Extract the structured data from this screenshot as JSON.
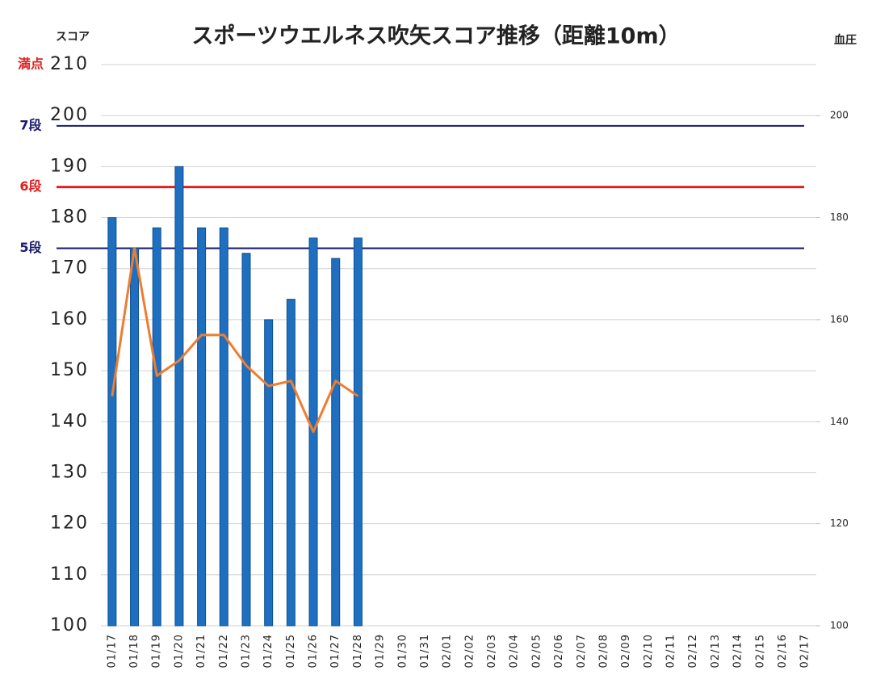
{
  "chart_data": {
    "type": "bar",
    "title": "スポーツウエルネス吹矢スコア推移（距離10m）",
    "ylabel": "スコア",
    "y2label": "血圧",
    "categories": [
      "01/17",
      "01/18",
      "01/19",
      "01/20",
      "01/21",
      "01/22",
      "01/23",
      "01/24",
      "01/25",
      "01/26",
      "01/27",
      "01/28",
      "01/29",
      "01/30",
      "01/31",
      "02/01",
      "02/02",
      "02/03",
      "02/04",
      "02/05",
      "02/06",
      "02/07",
      "02/08",
      "02/09",
      "02/10",
      "02/11",
      "02/12",
      "02/13",
      "02/14",
      "02/15",
      "02/16",
      "02/17"
    ],
    "series": [
      {
        "type": "bar",
        "color": "#1f6fc0",
        "values": [
          180,
          174,
          178,
          190,
          178,
          178,
          173,
          160,
          164,
          176,
          172,
          176,
          null,
          null,
          null,
          null,
          null,
          null,
          null,
          null,
          null,
          null,
          null,
          null,
          null,
          null,
          null,
          null,
          null,
          null,
          null,
          null
        ]
      },
      {
        "type": "line",
        "axis": "y2",
        "color": "#ed7d31",
        "values": [
          145,
          174,
          149,
          152,
          157,
          157,
          151,
          147,
          148,
          138,
          148,
          145,
          null,
          null,
          null,
          null,
          null,
          null,
          null,
          null,
          null,
          null,
          null,
          null,
          null,
          null,
          null,
          null,
          null,
          null,
          null,
          null
        ]
      }
    ],
    "ylim": [
      100,
      210
    ],
    "yticks": [
      100,
      110,
      120,
      130,
      140,
      150,
      160,
      170,
      180,
      190,
      200,
      210
    ],
    "y2lim": [
      100,
      210
    ],
    "y2ticks": [
      100,
      120,
      140,
      160,
      180,
      200
    ],
    "grid": true,
    "annotations": [
      {
        "label": "満点",
        "value": 210,
        "color": "#e02020",
        "line": false
      },
      {
        "label": "7段",
        "value": 198,
        "color": "#1a1a6e",
        "line": true
      },
      {
        "label": "6段",
        "value": 186,
        "color": "#e02020",
        "line": true
      },
      {
        "label": "5段",
        "value": 174,
        "color": "#1a1a6e",
        "line": true
      }
    ]
  }
}
